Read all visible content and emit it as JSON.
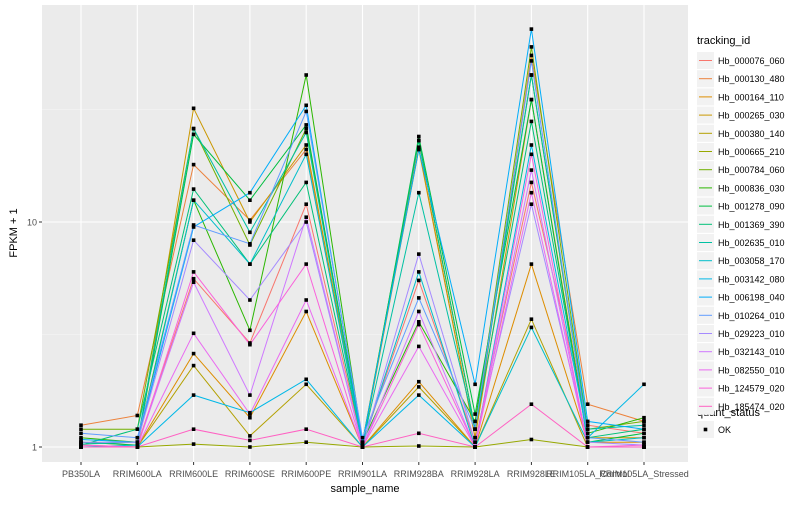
{
  "chart_data": {
    "type": "line",
    "xlabel": "sample_name",
    "ylabel": "FPKM + 1",
    "y_scale": "log10",
    "ylim": [
      1,
      75
    ],
    "y_ticks": [
      1,
      10
    ],
    "y_tick_labels": [
      "1",
      "10"
    ],
    "grid": true,
    "legend_position": "right",
    "categories": [
      "PB350LA",
      "RRIM600LA",
      "RRIM600LE",
      "RRIM600SE",
      "RRIM600PE",
      "RRIM901LA",
      "RRIM928BA",
      "RRIM928LA",
      "RRIM928LE",
      "RRIM105LA_Control",
      "RRIM105LA_Stressed"
    ],
    "legend_title": "tracking_id",
    "series": [
      {
        "name": "Hb_000076_060",
        "color": "#F8766D",
        "values": [
          1.05,
          1.02,
          5.6,
          2.9,
          12.0,
          1.03,
          5.5,
          1.05,
          15.0,
          1.25,
          1.15
        ]
      },
      {
        "name": "Hb_000130_480",
        "color": "#EC823C",
        "values": [
          1.25,
          1.38,
          18.0,
          10.2,
          21.0,
          1.05,
          21.5,
          1.1,
          55.0,
          1.55,
          1.3
        ]
      },
      {
        "name": "Hb_000164_110",
        "color": "#DD8D00",
        "values": [
          1.0,
          1.0,
          2.6,
          1.35,
          4.0,
          1.0,
          1.95,
          1.0,
          6.5,
          1.05,
          1.05
        ]
      },
      {
        "name": "Hb_000265_030",
        "color": "#CA9700",
        "values": [
          1.0,
          1.0,
          32.0,
          10.0,
          22.0,
          1.02,
          21.0,
          1.1,
          35.0,
          1.1,
          1.1
        ]
      },
      {
        "name": "Hb_000380_140",
        "color": "#B3A000",
        "values": [
          1.02,
          1.0,
          2.3,
          1.12,
          1.9,
          1.0,
          1.85,
          1.0,
          3.7,
          1.0,
          1.0
        ]
      },
      {
        "name": "Hb_000665_210",
        "color": "#97A800",
        "values": [
          1.0,
          1.0,
          1.03,
          1.0,
          1.05,
          1.0,
          1.01,
          1.0,
          1.08,
          1.0,
          1.0
        ]
      },
      {
        "name": "Hb_000784_060",
        "color": "#71B000",
        "values": [
          1.2,
          1.2,
          26.0,
          7.9,
          26.0,
          1.05,
          23.0,
          1.2,
          60.0,
          1.2,
          1.3
        ]
      },
      {
        "name": "Hb_000836_030",
        "color": "#2AB700",
        "values": [
          1.1,
          1.05,
          12.5,
          3.3,
          45.0,
          1.05,
          3.6,
          1.3,
          45.0,
          1.15,
          1.35
        ]
      },
      {
        "name": "Hb_001278_090",
        "color": "#00BE40",
        "values": [
          1.05,
          1.02,
          24.5,
          12.5,
          27.0,
          1.02,
          24.0,
          1.4,
          35.0,
          1.05,
          1.15
        ]
      },
      {
        "name": "Hb_001369_390",
        "color": "#00C078",
        "values": [
          1.02,
          1.2,
          14.0,
          6.5,
          15.0,
          1.03,
          23.0,
          1.2,
          28.0,
          1.1,
          1.2
        ]
      },
      {
        "name": "Hb_002635_010",
        "color": "#00C1A3",
        "values": [
          1.03,
          1.05,
          26.0,
          9.0,
          25.0,
          1.02,
          13.5,
          1.2,
          45.0,
          1.2,
          1.25
        ]
      },
      {
        "name": "Hb_003058_170",
        "color": "#00BECA",
        "values": [
          1.0,
          1.02,
          12.5,
          6.5,
          20.0,
          1.02,
          6.0,
          1.0,
          3.4,
          1.05,
          1.1
        ]
      },
      {
        "name": "Hb_003142_080",
        "color": "#00B8E7",
        "values": [
          1.0,
          1.0,
          1.7,
          1.42,
          2.0,
          1.0,
          1.7,
          1.0,
          22.0,
          1.1,
          1.9
        ]
      },
      {
        "name": "Hb_006198_040",
        "color": "#00ADFA",
        "values": [
          1.08,
          1.05,
          9.5,
          13.5,
          33.0,
          1.05,
          21.0,
          1.9,
          72.0,
          1.3,
          1.2
        ]
      },
      {
        "name": "Hb_010264_010",
        "color": "#619CFF",
        "values": [
          1.15,
          1.1,
          9.7,
          8.0,
          31.0,
          1.1,
          4.6,
          1.2,
          52.0,
          1.1,
          1.05
        ]
      },
      {
        "name": "Hb_029223_010",
        "color": "#A58AFF",
        "values": [
          1.05,
          1.05,
          8.3,
          4.5,
          10.0,
          1.0,
          7.2,
          1.05,
          12.0,
          1.05,
          1.02
        ]
      },
      {
        "name": "Hb_032143_010",
        "color": "#CF78FF",
        "values": [
          1.0,
          1.0,
          5.4,
          1.7,
          10.5,
          1.0,
          4.0,
          1.0,
          17.0,
          1.0,
          1.0
        ]
      },
      {
        "name": "Hb_082550_010",
        "color": "#EA6AF1",
        "values": [
          1.0,
          1.0,
          3.2,
          1.4,
          4.5,
          1.0,
          2.8,
          1.0,
          13.5,
          1.0,
          1.0
        ]
      },
      {
        "name": "Hb_124579_020",
        "color": "#FA62DB",
        "values": [
          1.02,
          1.0,
          6.0,
          2.85,
          6.5,
          1.0,
          3.5,
          1.0,
          20.0,
          1.0,
          1.02
        ]
      },
      {
        "name": "Hb_185474_020",
        "color": "#FF61C3",
        "values": [
          1.0,
          1.0,
          1.2,
          1.07,
          1.2,
          1.0,
          1.15,
          1.0,
          1.55,
          1.0,
          1.0
        ]
      }
    ],
    "shape_legend": {
      "title": "quant_status",
      "entries": [
        {
          "label": "OK"
        }
      ]
    }
  }
}
